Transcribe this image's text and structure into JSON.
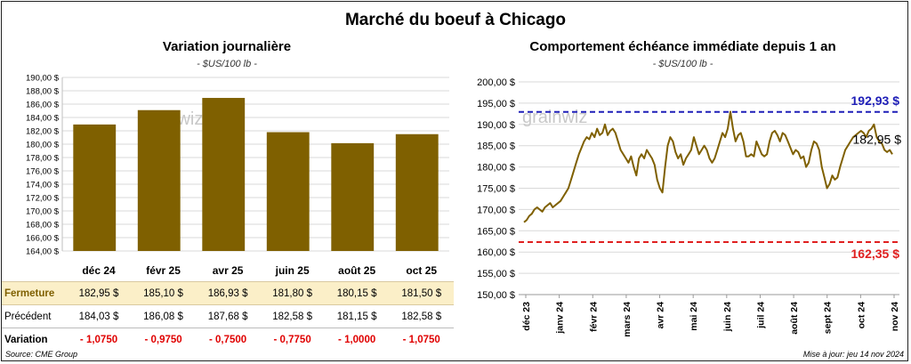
{
  "title": "Marché du boeuf à Chicago",
  "source": "Source: CME Group",
  "update": "Mise à jour: jeu 14 nov 2024",
  "watermark": "grainwiz",
  "colors": {
    "bar": "#7f6000",
    "line": "#7f6000",
    "high": "#1f1fb8",
    "low": "#e02020",
    "close_bg": "#fbefc8"
  },
  "chart_data": [
    {
      "type": "bar",
      "title": "Variation  journalière",
      "subtitle": "- $US/100 lb -",
      "categories": [
        "déc 24",
        "févr 25",
        "avr 25",
        "juin 25",
        "août 25",
        "oct 25"
      ],
      "values": [
        182.95,
        185.1,
        186.93,
        181.8,
        180.15,
        181.5
      ],
      "ylim": [
        164,
        190
      ],
      "yticks": [
        "164,00 $",
        "166,00 $",
        "168,00 $",
        "170,00 $",
        "172,00 $",
        "174,00 $",
        "176,00 $",
        "178,00 $",
        "180,00 $",
        "182,00 $",
        "184,00 $",
        "186,00 $",
        "188,00 $",
        "190,00 $"
      ],
      "grid": true
    },
    {
      "type": "line",
      "title": "Comportement  échéance immédiate depuis 1 an",
      "subtitle": "- $US/100 lb -",
      "ylim": [
        150,
        200
      ],
      "yticks": [
        "150,00 $",
        "155,00 $",
        "160,00 $",
        "165,00 $",
        "170,00 $",
        "175,00 $",
        "180,00 $",
        "185,00 $",
        "190,00 $",
        "195,00 $",
        "200,00 $"
      ],
      "xticks": [
        "déc 23",
        "janv 24",
        "févr 24",
        "mars 24",
        "avr 24",
        "mai 24",
        "juin 24",
        "juil 24",
        "août 24",
        "sept 24",
        "oct 24",
        "nov 24"
      ],
      "high": {
        "value": 192.93,
        "label": "192,93 $"
      },
      "low": {
        "value": 162.35,
        "label": "162,35 $"
      },
      "last_label": "182,95 $",
      "series": [
        {
          "values": [
            167,
            167.5,
            168.5,
            169,
            170,
            170.5,
            170,
            169.5,
            170.5,
            171,
            171.5,
            170.5,
            171,
            171.5,
            172,
            173,
            174,
            175,
            177,
            179,
            181,
            183,
            184.5,
            186,
            187,
            186.5,
            188,
            187,
            189,
            187.5,
            188,
            190,
            187.5,
            188.5,
            189,
            188,
            186,
            184,
            183,
            182,
            181,
            182.5,
            180,
            178,
            182,
            183,
            182,
            184,
            183,
            182,
            180.5,
            177,
            175,
            174,
            180,
            185,
            187,
            186,
            183.5,
            182,
            183,
            180.5,
            182,
            183,
            184,
            187,
            185,
            183,
            184,
            185,
            184,
            182,
            181,
            182,
            184,
            186,
            188,
            187,
            189,
            193,
            189,
            186,
            187.5,
            188,
            186,
            182.5,
            182.5,
            183,
            182.5,
            186,
            184.5,
            183,
            182.5,
            183,
            186,
            188,
            188.5,
            187.5,
            186,
            188,
            187.5,
            186,
            184.5,
            183,
            184,
            183.5,
            182,
            182.5,
            180,
            181,
            184,
            186,
            185.5,
            184,
            180,
            177.5,
            175,
            176,
            178,
            177,
            177.5,
            180,
            182,
            184,
            185,
            186,
            187,
            187.5,
            188,
            188.5,
            188,
            187,
            188.5,
            189,
            190,
            187,
            186,
            185.5,
            184,
            183.5,
            184,
            183
          ]
        }
      ]
    }
  ],
  "table": {
    "rows": [
      {
        "label": "Fermeture",
        "values": [
          "182,95",
          "185,10",
          "186,93",
          "181,80",
          "180,15",
          "181,50"
        ],
        "suffix": "$"
      },
      {
        "label": "Précédent",
        "values": [
          "184,03",
          "186,08",
          "187,68",
          "182,58",
          "181,15",
          "182,58"
        ],
        "suffix": "$"
      },
      {
        "label": "Variation",
        "values": [
          "- 1,0750",
          "- 0,9750",
          "- 0,7500",
          "- 0,7750",
          "- 1,0000",
          "- 1,0750"
        ],
        "suffix": ""
      }
    ]
  }
}
